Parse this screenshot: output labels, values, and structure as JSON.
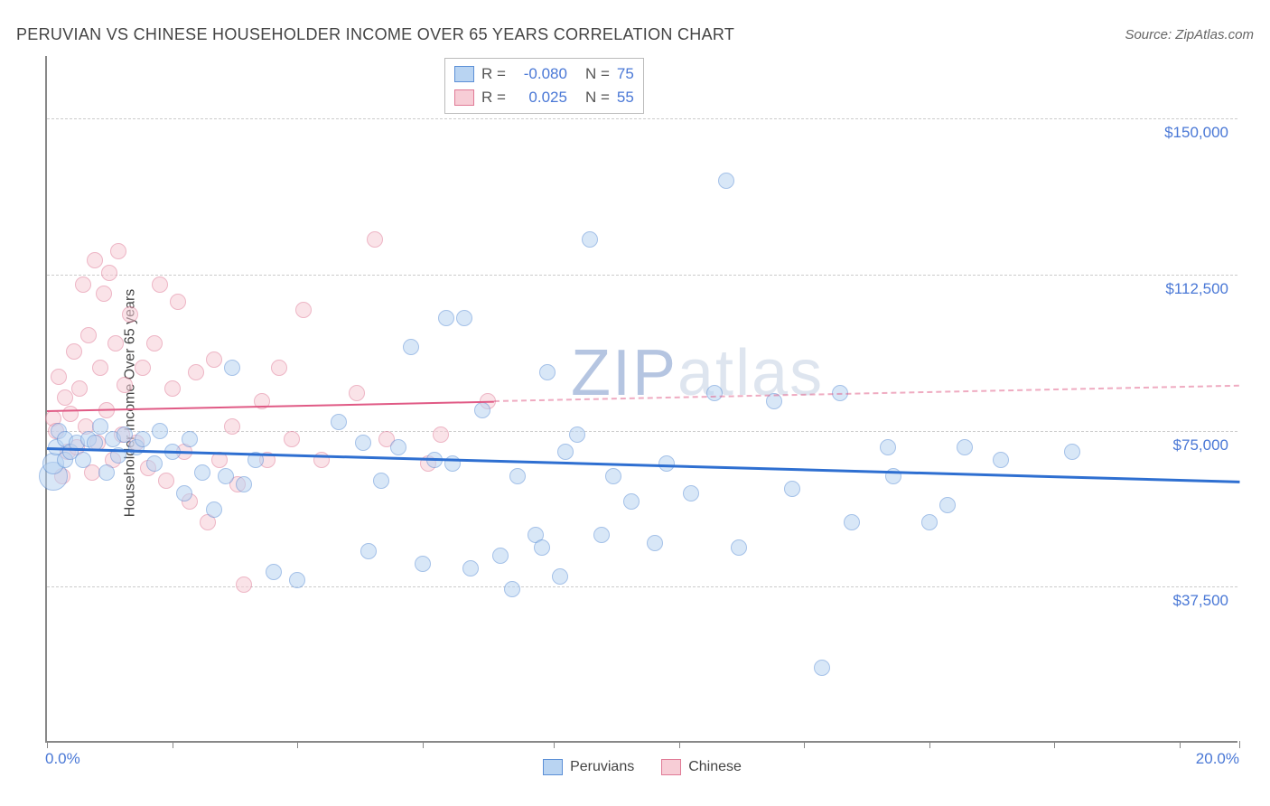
{
  "header": {
    "title": "PERUVIAN VS CHINESE HOUSEHOLDER INCOME OVER 65 YEARS CORRELATION CHART",
    "source": "Source: ZipAtlas.com"
  },
  "watermark": {
    "part1": "ZIP",
    "part2": "atlas"
  },
  "chart": {
    "type": "scatter",
    "ylabel": "Householder Income Over 65 years",
    "background_color": "#ffffff",
    "grid_color": "#cccccc",
    "axis_color": "#888888",
    "xlim": [
      0,
      20
    ],
    "ylim": [
      0,
      165000
    ],
    "x_ticks": [
      0,
      2.1,
      4.2,
      6.3,
      8.5,
      10.6,
      12.7,
      14.8,
      16.9,
      19.0,
      20.0
    ],
    "x_tick_labels": {
      "0": "0.0%",
      "20": "20.0%"
    },
    "y_gridlines": [
      37500,
      75000,
      112500,
      150000
    ],
    "y_tick_labels": {
      "37500": "$37,500",
      "75000": "$75,000",
      "112500": "$112,500",
      "150000": "$150,000"
    },
    "xtick_label_color": "#4a78d6",
    "ytick_label_color": "#4a78d6",
    "label_fontsize": 16,
    "tick_fontsize": 17,
    "point_border_width": 1.5,
    "point_opacity": 0.55
  },
  "series": {
    "peruvians": {
      "label": "Peruvians",
      "point_fill": "#b9d4f2",
      "point_stroke": "#5b8fd6",
      "trend_color": "#2e6fd1",
      "trend_width": 3,
      "R": "-0.080",
      "N": "75",
      "trend": {
        "x1": 0,
        "y1": 71000,
        "x2": 20,
        "y2": 63000,
        "solid_until_x": 20
      },
      "points": [
        {
          "x": 0.1,
          "y": 64000,
          "r": 16
        },
        {
          "x": 0.1,
          "y": 67000,
          "r": 12
        },
        {
          "x": 0.15,
          "y": 71000,
          "r": 9
        },
        {
          "x": 0.2,
          "y": 75000,
          "r": 9
        },
        {
          "x": 0.3,
          "y": 68000,
          "r": 9
        },
        {
          "x": 0.3,
          "y": 73000,
          "r": 9
        },
        {
          "x": 0.4,
          "y": 70000,
          "r": 9
        },
        {
          "x": 0.5,
          "y": 72000,
          "r": 9
        },
        {
          "x": 0.6,
          "y": 68000,
          "r": 9
        },
        {
          "x": 0.7,
          "y": 73000,
          "r": 9
        },
        {
          "x": 0.8,
          "y": 72000,
          "r": 9
        },
        {
          "x": 0.9,
          "y": 76000,
          "r": 9
        },
        {
          "x": 1.0,
          "y": 65000,
          "r": 9
        },
        {
          "x": 1.1,
          "y": 73000,
          "r": 9
        },
        {
          "x": 1.2,
          "y": 69000,
          "r": 9
        },
        {
          "x": 1.3,
          "y": 74000,
          "r": 9
        },
        {
          "x": 1.5,
          "y": 71000,
          "r": 9
        },
        {
          "x": 1.6,
          "y": 73000,
          "r": 9
        },
        {
          "x": 1.8,
          "y": 67000,
          "r": 9
        },
        {
          "x": 1.9,
          "y": 75000,
          "r": 9
        },
        {
          "x": 2.1,
          "y": 70000,
          "r": 9
        },
        {
          "x": 2.3,
          "y": 60000,
          "r": 9
        },
        {
          "x": 2.4,
          "y": 73000,
          "r": 9
        },
        {
          "x": 2.6,
          "y": 65000,
          "r": 9
        },
        {
          "x": 2.8,
          "y": 56000,
          "r": 9
        },
        {
          "x": 3.0,
          "y": 64000,
          "r": 9
        },
        {
          "x": 3.1,
          "y": 90000,
          "r": 9
        },
        {
          "x": 3.3,
          "y": 62000,
          "r": 9
        },
        {
          "x": 3.5,
          "y": 68000,
          "r": 9
        },
        {
          "x": 3.8,
          "y": 41000,
          "r": 9
        },
        {
          "x": 4.2,
          "y": 39000,
          "r": 9
        },
        {
          "x": 4.9,
          "y": 77000,
          "r": 9
        },
        {
          "x": 5.3,
          "y": 72000,
          "r": 9
        },
        {
          "x": 5.4,
          "y": 46000,
          "r": 9
        },
        {
          "x": 5.6,
          "y": 63000,
          "r": 9
        },
        {
          "x": 5.9,
          "y": 71000,
          "r": 9
        },
        {
          "x": 6.1,
          "y": 95000,
          "r": 9
        },
        {
          "x": 6.3,
          "y": 43000,
          "r": 9
        },
        {
          "x": 6.5,
          "y": 68000,
          "r": 9
        },
        {
          "x": 6.7,
          "y": 102000,
          "r": 9
        },
        {
          "x": 6.8,
          "y": 67000,
          "r": 9
        },
        {
          "x": 7.0,
          "y": 102000,
          "r": 9
        },
        {
          "x": 7.1,
          "y": 42000,
          "r": 9
        },
        {
          "x": 7.3,
          "y": 80000,
          "r": 9
        },
        {
          "x": 7.6,
          "y": 45000,
          "r": 9
        },
        {
          "x": 7.8,
          "y": 37000,
          "r": 9
        },
        {
          "x": 7.9,
          "y": 64000,
          "r": 9
        },
        {
          "x": 8.2,
          "y": 50000,
          "r": 9
        },
        {
          "x": 8.3,
          "y": 47000,
          "r": 9
        },
        {
          "x": 8.4,
          "y": 89000,
          "r": 9
        },
        {
          "x": 8.6,
          "y": 40000,
          "r": 9
        },
        {
          "x": 8.7,
          "y": 70000,
          "r": 9
        },
        {
          "x": 8.9,
          "y": 74000,
          "r": 9
        },
        {
          "x": 9.1,
          "y": 121000,
          "r": 9
        },
        {
          "x": 9.3,
          "y": 50000,
          "r": 9
        },
        {
          "x": 9.5,
          "y": 64000,
          "r": 9
        },
        {
          "x": 9.8,
          "y": 58000,
          "r": 9
        },
        {
          "x": 10.2,
          "y": 48000,
          "r": 9
        },
        {
          "x": 10.4,
          "y": 67000,
          "r": 9
        },
        {
          "x": 10.8,
          "y": 60000,
          "r": 9
        },
        {
          "x": 11.2,
          "y": 84000,
          "r": 9
        },
        {
          "x": 11.4,
          "y": 135000,
          "r": 9
        },
        {
          "x": 11.6,
          "y": 47000,
          "r": 9
        },
        {
          "x": 12.2,
          "y": 82000,
          "r": 9
        },
        {
          "x": 12.5,
          "y": 61000,
          "r": 9
        },
        {
          "x": 13.0,
          "y": 18000,
          "r": 9
        },
        {
          "x": 13.3,
          "y": 84000,
          "r": 9
        },
        {
          "x": 13.5,
          "y": 53000,
          "r": 9
        },
        {
          "x": 14.1,
          "y": 71000,
          "r": 9
        },
        {
          "x": 14.2,
          "y": 64000,
          "r": 9
        },
        {
          "x": 14.8,
          "y": 53000,
          "r": 9
        },
        {
          "x": 15.1,
          "y": 57000,
          "r": 9
        },
        {
          "x": 15.4,
          "y": 71000,
          "r": 9
        },
        {
          "x": 16.0,
          "y": 68000,
          "r": 9
        },
        {
          "x": 17.2,
          "y": 70000,
          "r": 9
        }
      ]
    },
    "chinese": {
      "label": "Chinese",
      "point_fill": "#f7cdd6",
      "point_stroke": "#e07a96",
      "trend_color": "#e05a85",
      "trend_width": 2,
      "R": "0.025",
      "N": "55",
      "trend": {
        "x1": 0,
        "y1": 80000,
        "x2": 20,
        "y2": 86000,
        "solid_until_x": 7.5
      },
      "points": [
        {
          "x": 0.1,
          "y": 78000,
          "r": 9
        },
        {
          "x": 0.15,
          "y": 75000,
          "r": 9
        },
        {
          "x": 0.2,
          "y": 88000,
          "r": 9
        },
        {
          "x": 0.25,
          "y": 64000,
          "r": 9
        },
        {
          "x": 0.3,
          "y": 83000,
          "r": 9
        },
        {
          "x": 0.35,
          "y": 70000,
          "r": 9
        },
        {
          "x": 0.4,
          "y": 79000,
          "r": 9
        },
        {
          "x": 0.45,
          "y": 94000,
          "r": 9
        },
        {
          "x": 0.5,
          "y": 71000,
          "r": 9
        },
        {
          "x": 0.55,
          "y": 85000,
          "r": 9
        },
        {
          "x": 0.6,
          "y": 110000,
          "r": 9
        },
        {
          "x": 0.65,
          "y": 76000,
          "r": 9
        },
        {
          "x": 0.7,
          "y": 98000,
          "r": 9
        },
        {
          "x": 0.75,
          "y": 65000,
          "r": 9
        },
        {
          "x": 0.8,
          "y": 116000,
          "r": 9
        },
        {
          "x": 0.85,
          "y": 72000,
          "r": 9
        },
        {
          "x": 0.9,
          "y": 90000,
          "r": 9
        },
        {
          "x": 0.95,
          "y": 108000,
          "r": 9
        },
        {
          "x": 1.0,
          "y": 80000,
          "r": 9
        },
        {
          "x": 1.05,
          "y": 113000,
          "r": 9
        },
        {
          "x": 1.1,
          "y": 68000,
          "r": 9
        },
        {
          "x": 1.15,
          "y": 96000,
          "r": 9
        },
        {
          "x": 1.2,
          "y": 118000,
          "r": 9
        },
        {
          "x": 1.25,
          "y": 74000,
          "r": 9
        },
        {
          "x": 1.3,
          "y": 86000,
          "r": 9
        },
        {
          "x": 1.4,
          "y": 103000,
          "r": 9
        },
        {
          "x": 1.5,
          "y": 72000,
          "r": 9
        },
        {
          "x": 1.6,
          "y": 90000,
          "r": 9
        },
        {
          "x": 1.7,
          "y": 66000,
          "r": 9
        },
        {
          "x": 1.8,
          "y": 96000,
          "r": 9
        },
        {
          "x": 1.9,
          "y": 110000,
          "r": 9
        },
        {
          "x": 2.0,
          "y": 63000,
          "r": 9
        },
        {
          "x": 2.1,
          "y": 85000,
          "r": 9
        },
        {
          "x": 2.2,
          "y": 106000,
          "r": 9
        },
        {
          "x": 2.3,
          "y": 70000,
          "r": 9
        },
        {
          "x": 2.4,
          "y": 58000,
          "r": 9
        },
        {
          "x": 2.5,
          "y": 89000,
          "r": 9
        },
        {
          "x": 2.7,
          "y": 53000,
          "r": 9
        },
        {
          "x": 2.8,
          "y": 92000,
          "r": 9
        },
        {
          "x": 2.9,
          "y": 68000,
          "r": 9
        },
        {
          "x": 3.1,
          "y": 76000,
          "r": 9
        },
        {
          "x": 3.2,
          "y": 62000,
          "r": 9
        },
        {
          "x": 3.3,
          "y": 38000,
          "r": 9
        },
        {
          "x": 3.6,
          "y": 82000,
          "r": 9
        },
        {
          "x": 3.7,
          "y": 68000,
          "r": 9
        },
        {
          "x": 3.9,
          "y": 90000,
          "r": 9
        },
        {
          "x": 4.1,
          "y": 73000,
          "r": 9
        },
        {
          "x": 4.3,
          "y": 104000,
          "r": 9
        },
        {
          "x": 4.6,
          "y": 68000,
          "r": 9
        },
        {
          "x": 5.2,
          "y": 84000,
          "r": 9
        },
        {
          "x": 5.5,
          "y": 121000,
          "r": 9
        },
        {
          "x": 5.7,
          "y": 73000,
          "r": 9
        },
        {
          "x": 6.4,
          "y": 67000,
          "r": 9
        },
        {
          "x": 6.6,
          "y": 74000,
          "r": 9
        },
        {
          "x": 7.4,
          "y": 82000,
          "r": 9
        }
      ]
    }
  },
  "statbox": {
    "R_label": "R =",
    "N_label": "N ="
  },
  "bottom_legend": {
    "s1_label": "Peruvians",
    "s2_label": "Chinese"
  }
}
